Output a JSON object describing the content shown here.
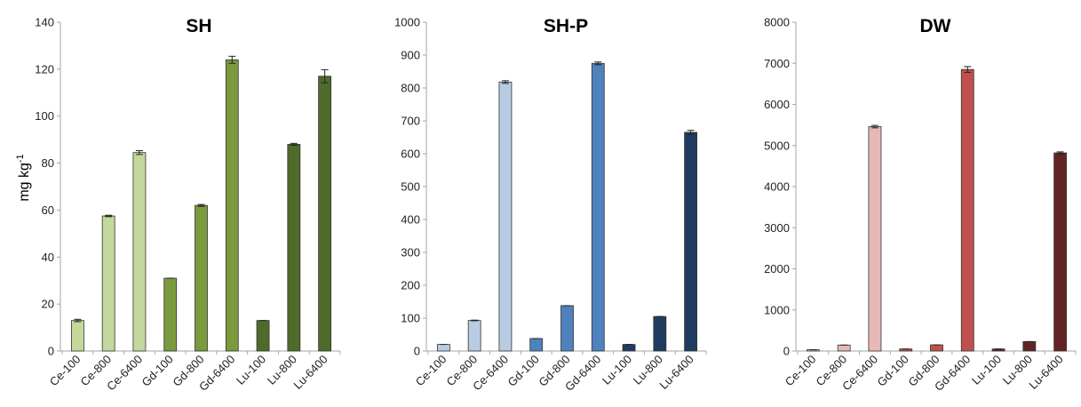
{
  "chart_data": [
    {
      "type": "bar",
      "title": "SH",
      "ylabel": "mg kg",
      "ylabel_sup": "-1",
      "categories": [
        "Ce-100",
        "Ce-800",
        "Ce-6400",
        "Gd-100",
        "Gd-800",
        "Gd-6400",
        "Lu-100",
        "Lu-800",
        "Lu-6400"
      ],
      "values": [
        13,
        57.5,
        84.5,
        31,
        62,
        124,
        13,
        88,
        117
      ],
      "errors": [
        0.5,
        0.3,
        0.8,
        0,
        0.4,
        1.5,
        0,
        0.4,
        2.8
      ],
      "colors": [
        "#c3d89c",
        "#c3d89c",
        "#c3d89c",
        "#7a9a3d",
        "#7a9a3d",
        "#7a9a3d",
        "#4f6b2a",
        "#4f6b2a",
        "#4f6b2a"
      ],
      "ylim": [
        0,
        140
      ],
      "yticks": [
        "0",
        "20",
        "40",
        "60",
        "80",
        "100",
        "120",
        "140"
      ]
    },
    {
      "type": "bar",
      "title": "SH-P",
      "categories": [
        "Ce-100",
        "Ce-800",
        "Ce-6400",
        "Gd-100",
        "Gd-800",
        "Gd-6400",
        "Lu-100",
        "Lu-800",
        "Lu-6400"
      ],
      "values": [
        20,
        93,
        818,
        38,
        138,
        875,
        20,
        105,
        665
      ],
      "errors": [
        0,
        1,
        4,
        0,
        0,
        4,
        0,
        0,
        6
      ],
      "colors": [
        "#b8cce4",
        "#b8cce4",
        "#b8cce4",
        "#4f81bd",
        "#4f81bd",
        "#4f81bd",
        "#1f3c60",
        "#1f3c60",
        "#1f3c60"
      ],
      "ylim": [
        0,
        1000
      ],
      "yticks": [
        "0",
        "100",
        "200",
        "300",
        "400",
        "500",
        "600",
        "700",
        "800",
        "900",
        "1000"
      ]
    },
    {
      "type": "bar",
      "title": "DW",
      "categories": [
        "Ce-100",
        "Ce-800",
        "Ce-6400",
        "Gd-100",
        "Gd-800",
        "Gd-6400",
        "Lu-100",
        "Lu-800",
        "Lu-6400"
      ],
      "values": [
        30,
        145,
        5460,
        50,
        150,
        6850,
        50,
        230,
        4820
      ],
      "errors": [
        0,
        0,
        30,
        0,
        0,
        70,
        0,
        0,
        25
      ],
      "colors": [
        "#e6b9b8",
        "#e6b9b8",
        "#e6b9b8",
        "#c0504d",
        "#c0504d",
        "#c0504d",
        "#632523",
        "#632523",
        "#632523"
      ],
      "ylim": [
        0,
        8000
      ],
      "yticks": [
        "0",
        "1000",
        "2000",
        "3000",
        "4000",
        "5000",
        "6000",
        "7000",
        "8000"
      ]
    }
  ]
}
